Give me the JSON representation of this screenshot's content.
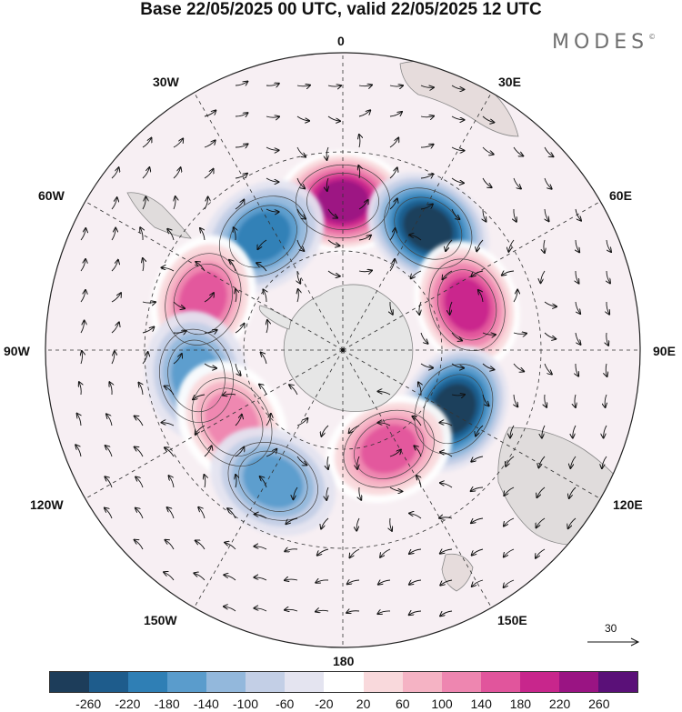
{
  "title": "Base 22/05/2025 00 UTC, valid 22/05/2025 12 UTC",
  "brand": {
    "text": "MODES",
    "mark": "©"
  },
  "longitude_labels": {
    "n0": "0",
    "e30": "30E",
    "e60": "60E",
    "e90": "90E",
    "e120": "120E",
    "e150": "150E",
    "s180": "180",
    "w150": "150W",
    "w120": "120W",
    "w90": "90W",
    "w60": "60W",
    "w30": "30W"
  },
  "colorbar": {
    "colors": [
      "#1d3d5a",
      "#1e5c8c",
      "#2f7fb5",
      "#5a9ccc",
      "#93b8dc",
      "#c3cfe6",
      "#e4e4f0",
      "#ffffff",
      "#f9d9dc",
      "#f5b3c4",
      "#ee86b0",
      "#e1559c",
      "#c8268c",
      "#9a1483",
      "#5a1078"
    ],
    "ticks": [
      "-260",
      "-220",
      "-180",
      "-140",
      "-100",
      "-60",
      "-20",
      "20",
      "60",
      "100",
      "140",
      "180",
      "220",
      "260"
    ]
  },
  "vector_legend": {
    "label": "30"
  },
  "anomaly_centers": [
    {
      "name": "positive-center-0E",
      "lon": 0,
      "lat": -45,
      "value": 240
    },
    {
      "name": "negative-center-30E",
      "lon": 35,
      "lat": -45,
      "value": -270
    },
    {
      "name": "positive-center-70E",
      "lon": 70,
      "lat": -50,
      "value": 230
    },
    {
      "name": "negative-center-120E",
      "lon": 118,
      "lat": -52,
      "value": -260
    },
    {
      "name": "positive-center-150E",
      "lon": 155,
      "lat": -57,
      "value": 190
    },
    {
      "name": "negative-center-30W",
      "lon": -35,
      "lat": -48,
      "value": -170
    },
    {
      "name": "positive-center-70W",
      "lon": -70,
      "lat": -45,
      "value": 160
    },
    {
      "name": "negative-center-100W",
      "lon": -100,
      "lat": -45,
      "value": -130
    },
    {
      "name": "positive-center-125W",
      "lon": -123,
      "lat": -50,
      "value": 120
    },
    {
      "name": "negative-center-155W",
      "lon": -152,
      "lat": -45,
      "value": -140
    }
  ]
}
